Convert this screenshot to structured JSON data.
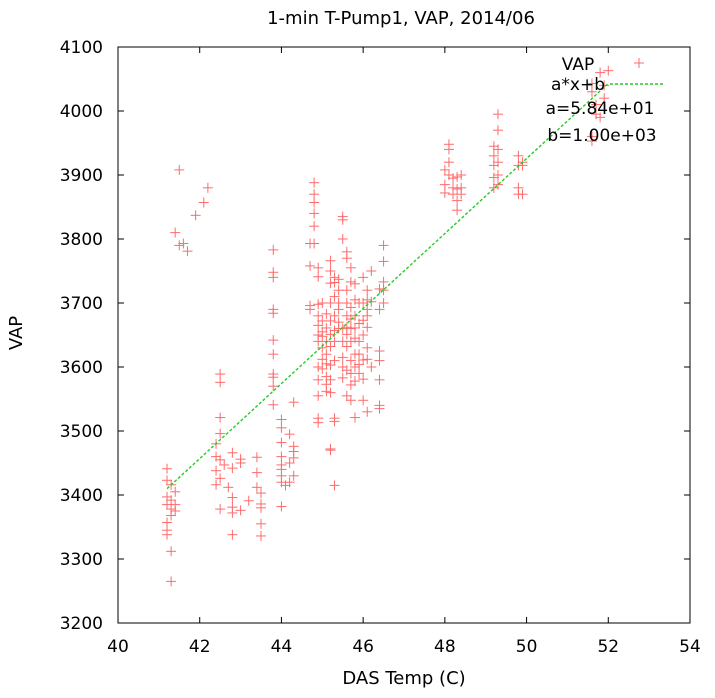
{
  "chart_data": {
    "type": "scatter",
    "title": "1-min T-Pump1, VAP, 2014/06",
    "xlabel": "DAS Temp (C)",
    "ylabel": "VAP",
    "xlim": [
      40,
      54
    ],
    "ylim": [
      3200,
      4100
    ],
    "xticks": [
      "40",
      "42",
      "44",
      "46",
      "48",
      "50",
      "52",
      "54"
    ],
    "yticks": [
      "3200",
      "3300",
      "3400",
      "3500",
      "3600",
      "3700",
      "3800",
      "3900",
      "4000",
      "4100"
    ],
    "grid": false,
    "legend_position": "top-right",
    "series": [
      {
        "name": "VAP",
        "marker": "plus",
        "color": "#ff6b6b",
        "points": [
          [
            41.2,
            3441
          ],
          [
            41.2,
            3423
          ],
          [
            41.2,
            3397
          ],
          [
            41.2,
            3385
          ],
          [
            41.2,
            3357
          ],
          [
            41.2,
            3345
          ],
          [
            41.2,
            3338
          ],
          [
            41.3,
            3416
          ],
          [
            41.3,
            3392
          ],
          [
            41.3,
            3378
          ],
          [
            41.3,
            3368
          ],
          [
            41.3,
            3312
          ],
          [
            41.3,
            3265
          ],
          [
            41.4,
            3405
          ],
          [
            41.4,
            3385
          ],
          [
            41.4,
            3375
          ],
          [
            41.4,
            3810
          ],
          [
            41.5,
            3908
          ],
          [
            41.5,
            3790
          ],
          [
            41.6,
            3793
          ],
          [
            41.7,
            3781
          ],
          [
            41.9,
            3837
          ],
          [
            42.1,
            3857
          ],
          [
            42.2,
            3880
          ],
          [
            42.5,
            3589
          ],
          [
            42.5,
            3576
          ],
          [
            42.5,
            3521
          ],
          [
            42.5,
            3496
          ],
          [
            42.4,
            3480
          ],
          [
            42.5,
            3455
          ],
          [
            42.4,
            3438
          ],
          [
            42.5,
            3426
          ],
          [
            42.4,
            3416
          ],
          [
            42.5,
            3378
          ],
          [
            42.4,
            3460
          ],
          [
            42.6,
            3447
          ],
          [
            42.8,
            3466
          ],
          [
            42.8,
            3442
          ],
          [
            42.7,
            3412
          ],
          [
            42.8,
            3396
          ],
          [
            42.8,
            3381
          ],
          [
            42.8,
            3372
          ],
          [
            42.8,
            3338
          ],
          [
            43.0,
            3456
          ],
          [
            43.0,
            3450
          ],
          [
            43.0,
            3376
          ],
          [
            43.2,
            3391
          ],
          [
            43.4,
            3459
          ],
          [
            43.4,
            3435
          ],
          [
            43.4,
            3412
          ],
          [
            43.5,
            3403
          ],
          [
            43.5,
            3386
          ],
          [
            43.5,
            3380
          ],
          [
            43.5,
            3355
          ],
          [
            43.5,
            3336
          ],
          [
            43.8,
            3783
          ],
          [
            43.8,
            3748
          ],
          [
            43.8,
            3740
          ],
          [
            43.8,
            3690
          ],
          [
            43.8,
            3684
          ],
          [
            43.8,
            3642
          ],
          [
            43.8,
            3620
          ],
          [
            43.8,
            3589
          ],
          [
            43.8,
            3584
          ],
          [
            43.8,
            3570
          ],
          [
            43.8,
            3541
          ],
          [
            44.0,
            3518
          ],
          [
            44.0,
            3505
          ],
          [
            44.0,
            3482
          ],
          [
            44.0,
            3460
          ],
          [
            44.0,
            3447
          ],
          [
            44.0,
            3440
          ],
          [
            44.0,
            3430
          ],
          [
            44.0,
            3420
          ],
          [
            44.1,
            3415
          ],
          [
            44.0,
            3382
          ],
          [
            44.2,
            3495
          ],
          [
            44.3,
            3545
          ],
          [
            44.3,
            3476
          ],
          [
            44.3,
            3468
          ],
          [
            44.3,
            3458
          ],
          [
            44.2,
            3450
          ],
          [
            44.3,
            3430
          ],
          [
            44.2,
            3420
          ],
          [
            44.7,
            3696
          ],
          [
            44.7,
            3690
          ],
          [
            44.7,
            3758
          ],
          [
            44.7,
            3793
          ],
          [
            44.8,
            3870
          ],
          [
            44.8,
            3888
          ],
          [
            44.8,
            3857
          ],
          [
            44.8,
            3840
          ],
          [
            44.8,
            3820
          ],
          [
            44.8,
            3793
          ],
          [
            44.9,
            3755
          ],
          [
            44.9,
            3741
          ],
          [
            44.9,
            3698
          ],
          [
            44.9,
            3680
          ],
          [
            44.9,
            3665
          ],
          [
            44.9,
            3650
          ],
          [
            44.9,
            3640
          ],
          [
            44.9,
            3600
          ],
          [
            44.9,
            3580
          ],
          [
            44.9,
            3555
          ],
          [
            44.9,
            3520
          ],
          [
            44.9,
            3513
          ],
          [
            45.0,
            3700
          ],
          [
            45.0,
            3672
          ],
          [
            45.0,
            3655
          ],
          [
            45.0,
            3648
          ],
          [
            45.0,
            3630
          ],
          [
            45.0,
            3612
          ],
          [
            45.0,
            3597
          ],
          [
            45.1,
            3683
          ],
          [
            45.1,
            3661
          ],
          [
            45.1,
            3640
          ],
          [
            45.1,
            3620
          ],
          [
            45.1,
            3605
          ],
          [
            45.1,
            3585
          ],
          [
            45.1,
            3573
          ],
          [
            45.1,
            3562
          ],
          [
            45.2,
            3766
          ],
          [
            45.2,
            3750
          ],
          [
            45.2,
            3731
          ],
          [
            45.2,
            3700
          ],
          [
            45.2,
            3672
          ],
          [
            45.2,
            3651
          ],
          [
            45.2,
            3632
          ],
          [
            45.2,
            3603
          ],
          [
            45.2,
            3580
          ],
          [
            45.2,
            3560
          ],
          [
            45.2,
            3472
          ],
          [
            45.2,
            3470
          ],
          [
            45.3,
            3740
          ],
          [
            45.3,
            3732
          ],
          [
            45.3,
            3710
          ],
          [
            45.3,
            3680
          ],
          [
            45.3,
            3657
          ],
          [
            45.3,
            3640
          ],
          [
            45.3,
            3610
          ],
          [
            45.3,
            3520
          ],
          [
            45.3,
            3515
          ],
          [
            45.3,
            3415
          ],
          [
            45.4,
            3737
          ],
          [
            45.4,
            3720
          ],
          [
            45.4,
            3700
          ],
          [
            45.4,
            3690
          ],
          [
            45.4,
            3670
          ],
          [
            45.4,
            3660
          ],
          [
            45.5,
            3835
          ],
          [
            45.5,
            3830
          ],
          [
            45.5,
            3800
          ],
          [
            45.5,
            3660
          ],
          [
            45.5,
            3640
          ],
          [
            45.5,
            3615
          ],
          [
            45.5,
            3600
          ],
          [
            45.5,
            3583
          ],
          [
            45.6,
            3780
          ],
          [
            45.6,
            3770
          ],
          [
            45.6,
            3720
          ],
          [
            45.6,
            3700
          ],
          [
            45.6,
            3680
          ],
          [
            45.6,
            3662
          ],
          [
            45.6,
            3651
          ],
          [
            45.6,
            3632
          ],
          [
            45.6,
            3595
          ],
          [
            45.6,
            3555
          ],
          [
            45.7,
            3755
          ],
          [
            45.7,
            3733
          ],
          [
            45.7,
            3693
          ],
          [
            45.7,
            3675
          ],
          [
            45.7,
            3660
          ],
          [
            45.7,
            3640
          ],
          [
            45.7,
            3610
          ],
          [
            45.7,
            3590
          ],
          [
            45.7,
            3572
          ],
          [
            45.7,
            3548
          ],
          [
            45.8,
            3730
          ],
          [
            45.8,
            3705
          ],
          [
            45.8,
            3680
          ],
          [
            45.8,
            3661
          ],
          [
            45.8,
            3645
          ],
          [
            45.8,
            3620
          ],
          [
            45.8,
            3600
          ],
          [
            45.8,
            3578
          ],
          [
            45.8,
            3521
          ],
          [
            45.9,
            3700
          ],
          [
            45.9,
            3668
          ],
          [
            45.9,
            3640
          ],
          [
            45.9,
            3620
          ],
          [
            45.9,
            3604
          ],
          [
            45.9,
            3590
          ],
          [
            46.0,
            3740
          ],
          [
            46.0,
            3700
          ],
          [
            46.0,
            3673
          ],
          [
            46.0,
            3650
          ],
          [
            46.0,
            3611
          ],
          [
            46.0,
            3581
          ],
          [
            46.0,
            3548
          ],
          [
            46.1,
            3530
          ],
          [
            46.1,
            3720
          ],
          [
            46.1,
            3705
          ],
          [
            46.1,
            3690
          ],
          [
            46.1,
            3680
          ],
          [
            46.1,
            3662
          ],
          [
            46.1,
            3630
          ],
          [
            46.1,
            3612
          ],
          [
            46.2,
            3750
          ],
          [
            46.2,
            3702
          ],
          [
            46.2,
            3600
          ],
          [
            46.4,
            3722
          ],
          [
            46.4,
            3690
          ],
          [
            46.4,
            3625
          ],
          [
            46.4,
            3610
          ],
          [
            46.4,
            3580
          ],
          [
            46.4,
            3540
          ],
          [
            46.4,
            3535
          ],
          [
            46.5,
            3790
          ],
          [
            46.5,
            3765
          ],
          [
            46.5,
            3733
          ],
          [
            46.5,
            3720
          ],
          [
            46.5,
            3700
          ],
          [
            48.0,
            3908
          ],
          [
            48.0,
            3885
          ],
          [
            48.0,
            3872
          ],
          [
            48.1,
            3948
          ],
          [
            48.1,
            3940
          ],
          [
            48.1,
            3920
          ],
          [
            48.1,
            3900
          ],
          [
            48.2,
            3895
          ],
          [
            48.2,
            3880
          ],
          [
            48.2,
            3870
          ],
          [
            48.3,
            3897
          ],
          [
            48.3,
            3878
          ],
          [
            48.3,
            3860
          ],
          [
            48.4,
            3900
          ],
          [
            48.4,
            3880
          ],
          [
            48.4,
            3870
          ],
          [
            48.3,
            3845
          ],
          [
            49.2,
            3945
          ],
          [
            49.2,
            3930
          ],
          [
            49.2,
            3915
          ],
          [
            49.2,
            3896
          ],
          [
            49.2,
            3880
          ],
          [
            49.3,
            3995
          ],
          [
            49.3,
            3970
          ],
          [
            49.3,
            3940
          ],
          [
            49.3,
            3920
          ],
          [
            49.3,
            3900
          ],
          [
            49.3,
            3885
          ],
          [
            49.8,
            3930
          ],
          [
            49.8,
            3915
          ],
          [
            49.9,
            3920
          ],
          [
            49.9,
            3915
          ],
          [
            49.8,
            3880
          ],
          [
            49.8,
            3870
          ],
          [
            49.9,
            3870
          ],
          [
            51.6,
            4043
          ],
          [
            51.6,
            4030
          ],
          [
            51.7,
            4010
          ],
          [
            51.7,
            3995
          ],
          [
            51.8,
            3990
          ],
          [
            51.8,
            4060
          ],
          [
            51.9,
            4040
          ],
          [
            51.9,
            4020
          ],
          [
            52.0,
            4063
          ],
          [
            51.6,
            3960
          ],
          [
            51.6,
            3953
          ]
        ]
      },
      {
        "name": "a*x+b",
        "type": "line",
        "color": "#22cc22",
        "x": [
          41.2,
          52.0
        ],
        "y": [
          3410,
          4043
        ]
      }
    ],
    "legend": [
      {
        "label": "VAP"
      },
      {
        "label": "a*x+b"
      },
      {
        "label": "a=5.84e+01"
      },
      {
        "label": "b=1.00e+03"
      }
    ]
  }
}
